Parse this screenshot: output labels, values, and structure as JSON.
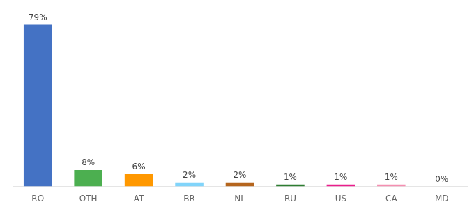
{
  "chart_data": {
    "type": "bar",
    "categories": [
      "RO",
      "OTH",
      "AT",
      "BR",
      "NL",
      "RU",
      "US",
      "CA",
      "MD"
    ],
    "values": [
      79,
      8,
      6,
      2,
      2,
      1,
      1,
      1,
      0
    ],
    "value_labels": [
      "79%",
      "8%",
      "6%",
      "2%",
      "2%",
      "1%",
      "1%",
      "1%",
      "0%"
    ],
    "colors": [
      "#4472c4",
      "#4caf50",
      "#ff9800",
      "#81d4fa",
      "#b5651d",
      "#2e7d32",
      "#e91e8c",
      "#f48fb1",
      "#cccccc"
    ],
    "ylim": [
      0,
      85
    ],
    "data_labels": true,
    "tick_labels": "x",
    "grid": false
  }
}
